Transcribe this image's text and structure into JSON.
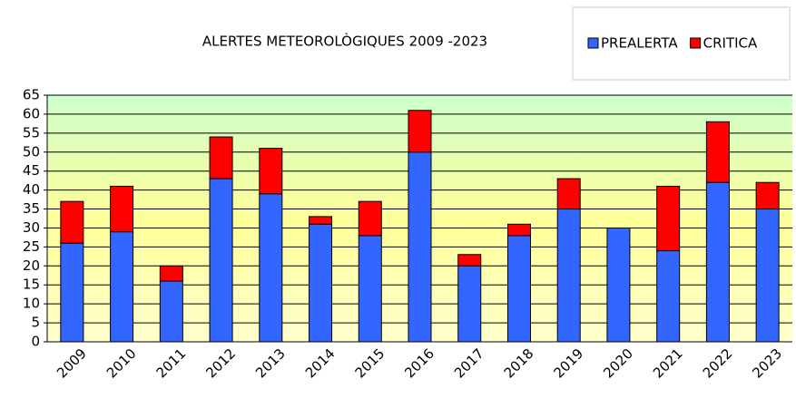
{
  "chart_data": {
    "type": "stacked_bar",
    "title": "ALERTES METEOROLÒGIQUES 2009 -2023",
    "categories": [
      "2009",
      "2010",
      "2011",
      "2012",
      "2013",
      "2014",
      "2015",
      "2016",
      "2017",
      "2018",
      "2019",
      "2020",
      "2021",
      "2022",
      "2023"
    ],
    "series": [
      {
        "name": "PREALERTA",
        "color": "#3366ff",
        "values": [
          26,
          29,
          16,
          43,
          39,
          31,
          28,
          50,
          20,
          28,
          35,
          30,
          24,
          42,
          35
        ]
      },
      {
        "name": "CRITICA",
        "color": "#ff0000",
        "values": [
          11,
          12,
          4,
          11,
          12,
          2,
          9,
          11,
          3,
          3,
          8,
          0,
          17,
          16,
          7
        ]
      }
    ],
    "ylim": [
      0,
      65
    ],
    "yticks": [
      0,
      5,
      10,
      15,
      20,
      25,
      30,
      35,
      40,
      45,
      50,
      55,
      60,
      65
    ],
    "grid": true,
    "legend": "top-right"
  }
}
